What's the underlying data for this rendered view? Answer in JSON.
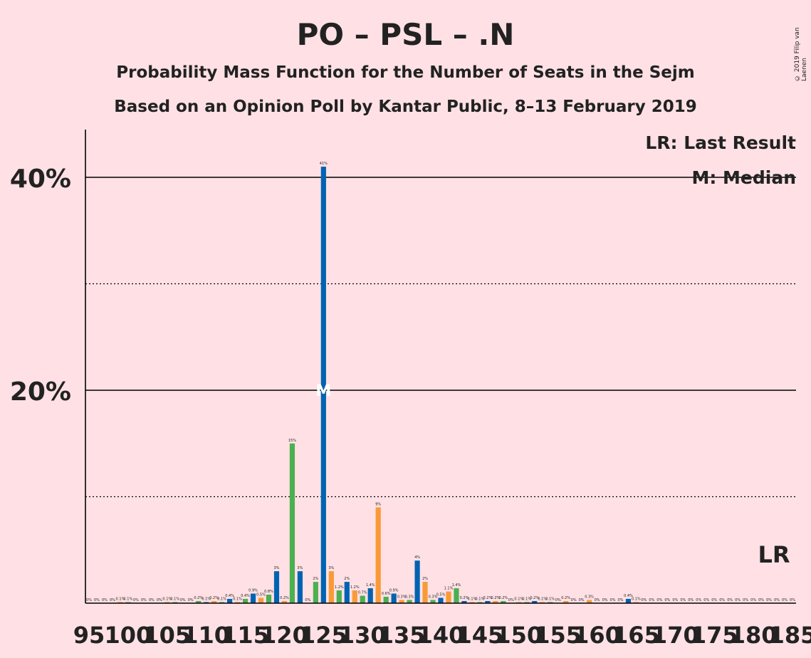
{
  "header": {
    "title": "PO – PSL – .N",
    "subtitle": "Probability Mass Function for the Number of Seats in the Sejm",
    "subtitle2": "Based on an Opinion Poll by Kantar Public, 8–13 February 2019",
    "copyright": "© 2019 Filip van Laenen"
  },
  "legend": {
    "lr": "LR: Last Result",
    "median": "M: Median",
    "lr_marker": "LR",
    "median_marker": "M"
  },
  "colors": {
    "background": "#FFE1E5",
    "blue": "#0063B1",
    "orange": "#F99A38",
    "green": "#4CAF50",
    "text": "#222222"
  },
  "chart_data": {
    "type": "bar",
    "xlabel": "",
    "ylabel": "",
    "ylim": [
      0,
      45
    ],
    "y_ticks": [
      {
        "value": 10,
        "label": "",
        "style": "dotted"
      },
      {
        "value": 20,
        "label": "20%",
        "style": "solid"
      },
      {
        "value": 30,
        "label": "",
        "style": "dotted"
      },
      {
        "value": 40,
        "label": "40%",
        "style": "solid"
      }
    ],
    "x_min": 95,
    "x_max": 185,
    "x_ticks": [
      95,
      100,
      105,
      110,
      115,
      120,
      125,
      130,
      135,
      140,
      145,
      150,
      155,
      160,
      165,
      170,
      175,
      180,
      185
    ],
    "median": 125,
    "last_result": 183,
    "bars": [
      {
        "x": 95,
        "value": 0,
        "label": "0%"
      },
      {
        "x": 96,
        "value": 0,
        "label": "0%"
      },
      {
        "x": 97,
        "value": 0,
        "label": "0%"
      },
      {
        "x": 98,
        "value": 0,
        "label": "0%"
      },
      {
        "x": 99,
        "value": 0.1,
        "label": "0.1%"
      },
      {
        "x": 100,
        "value": 0.1,
        "label": "0.1%"
      },
      {
        "x": 101,
        "value": 0,
        "label": "0%"
      },
      {
        "x": 102,
        "value": 0,
        "label": "0%"
      },
      {
        "x": 103,
        "value": 0,
        "label": "0%"
      },
      {
        "x": 104,
        "value": 0,
        "label": "0%"
      },
      {
        "x": 105,
        "value": 0.1,
        "label": "0.1%"
      },
      {
        "x": 106,
        "value": 0.1,
        "label": "0.1%"
      },
      {
        "x": 107,
        "value": 0,
        "label": "0%"
      },
      {
        "x": 108,
        "value": 0,
        "label": "0%"
      },
      {
        "x": 109,
        "value": 0.2,
        "label": "0.2%"
      },
      {
        "x": 110,
        "value": 0.1,
        "label": "0.1%"
      },
      {
        "x": 111,
        "value": 0.2,
        "label": "0.2%"
      },
      {
        "x": 112,
        "value": 0.1,
        "label": "0.1%"
      },
      {
        "x": 113,
        "value": 0.4,
        "label": "0.4%"
      },
      {
        "x": 114,
        "value": 0.1,
        "label": "0.1%"
      },
      {
        "x": 115,
        "value": 0.4,
        "label": "0.4%"
      },
      {
        "x": 116,
        "value": 0.9,
        "label": "0.9%"
      },
      {
        "x": 117,
        "value": 0.5,
        "label": "0.5%"
      },
      {
        "x": 118,
        "value": 0.8,
        "label": "0.8%"
      },
      {
        "x": 119,
        "value": 3,
        "label": "3%"
      },
      {
        "x": 120,
        "value": 0.2,
        "label": "0.2%"
      },
      {
        "x": 121,
        "value": 15,
        "label": "15%"
      },
      {
        "x": 122,
        "value": 3,
        "label": "3%"
      },
      {
        "x": 123,
        "value": 0,
        "label": "0%"
      },
      {
        "x": 124,
        "value": 2,
        "label": "2%"
      },
      {
        "x": 125,
        "value": 41,
        "label": "41%"
      },
      {
        "x": 126,
        "value": 3,
        "label": "3%"
      },
      {
        "x": 127,
        "value": 1.2,
        "label": "1.2%"
      },
      {
        "x": 128,
        "value": 2,
        "label": "2%"
      },
      {
        "x": 129,
        "value": 1.2,
        "label": "1.2%"
      },
      {
        "x": 130,
        "value": 0.7,
        "label": "0.7%"
      },
      {
        "x": 131,
        "value": 1.4,
        "label": "1.4%"
      },
      {
        "x": 132,
        "value": 9,
        "label": "9%"
      },
      {
        "x": 133,
        "value": 0.6,
        "label": "0.6%"
      },
      {
        "x": 134,
        "value": 0.9,
        "label": "0.9%"
      },
      {
        "x": 135,
        "value": 0.3,
        "label": "0.3%"
      },
      {
        "x": 136,
        "value": 0.3,
        "label": "0.3%"
      },
      {
        "x": 137,
        "value": 4,
        "label": "4%"
      },
      {
        "x": 138,
        "value": 2,
        "label": "2%"
      },
      {
        "x": 139,
        "value": 0.3,
        "label": "0.3%"
      },
      {
        "x": 140,
        "value": 0.5,
        "label": "0.5%"
      },
      {
        "x": 141,
        "value": 1.1,
        "label": "1.1%"
      },
      {
        "x": 142,
        "value": 1.4,
        "label": "1.4%"
      },
      {
        "x": 143,
        "value": 0.2,
        "label": "0.2%"
      },
      {
        "x": 144,
        "value": 0.1,
        "label": "0.1%"
      },
      {
        "x": 145,
        "value": 0.1,
        "label": "0.1%"
      },
      {
        "x": 146,
        "value": 0.2,
        "label": "0.2%"
      },
      {
        "x": 147,
        "value": 0.2,
        "label": "0.2%"
      },
      {
        "x": 148,
        "value": 0.2,
        "label": "0.2%"
      },
      {
        "x": 149,
        "value": 0,
        "label": "0%"
      },
      {
        "x": 150,
        "value": 0.1,
        "label": "0.1%"
      },
      {
        "x": 151,
        "value": 0.1,
        "label": "0.1%"
      },
      {
        "x": 152,
        "value": 0.2,
        "label": "0.2%"
      },
      {
        "x": 153,
        "value": 0.1,
        "label": "0.1%"
      },
      {
        "x": 154,
        "value": 0.1,
        "label": "0.1%"
      },
      {
        "x": 155,
        "value": 0,
        "label": "0%"
      },
      {
        "x": 156,
        "value": 0.2,
        "label": "0.2%"
      },
      {
        "x": 157,
        "value": 0,
        "label": "0%"
      },
      {
        "x": 158,
        "value": 0,
        "label": "0%"
      },
      {
        "x": 159,
        "value": 0.3,
        "label": "0.3%"
      },
      {
        "x": 160,
        "value": 0,
        "label": "0%"
      },
      {
        "x": 161,
        "value": 0,
        "label": "0%"
      },
      {
        "x": 162,
        "value": 0,
        "label": "0%"
      },
      {
        "x": 163,
        "value": 0,
        "label": "0%"
      },
      {
        "x": 164,
        "value": 0.4,
        "label": "0.4%"
      },
      {
        "x": 165,
        "value": 0.1,
        "label": "0.1%"
      },
      {
        "x": 166,
        "value": 0,
        "label": "0%"
      },
      {
        "x": 167,
        "value": 0,
        "label": "0%"
      },
      {
        "x": 168,
        "value": 0,
        "label": "0%"
      },
      {
        "x": 169,
        "value": 0,
        "label": "0%"
      },
      {
        "x": 170,
        "value": 0,
        "label": "0%"
      },
      {
        "x": 171,
        "value": 0,
        "label": "0%"
      },
      {
        "x": 172,
        "value": 0,
        "label": "0%"
      },
      {
        "x": 173,
        "value": 0,
        "label": "0%"
      },
      {
        "x": 174,
        "value": 0,
        "label": "0%"
      },
      {
        "x": 175,
        "value": 0,
        "label": "0%"
      },
      {
        "x": 176,
        "value": 0,
        "label": "0%"
      },
      {
        "x": 177,
        "value": 0,
        "label": "0%"
      },
      {
        "x": 178,
        "value": 0,
        "label": "0%"
      },
      {
        "x": 179,
        "value": 0,
        "label": "0%"
      },
      {
        "x": 180,
        "value": 0,
        "label": "0%"
      },
      {
        "x": 181,
        "value": 0,
        "label": "0%"
      },
      {
        "x": 182,
        "value": 0,
        "label": "0%"
      },
      {
        "x": 183,
        "value": 0,
        "label": "0%"
      },
      {
        "x": 184,
        "value": 0,
        "label": "0%"
      },
      {
        "x": 185,
        "value": 0,
        "label": "0%"
      }
    ]
  }
}
